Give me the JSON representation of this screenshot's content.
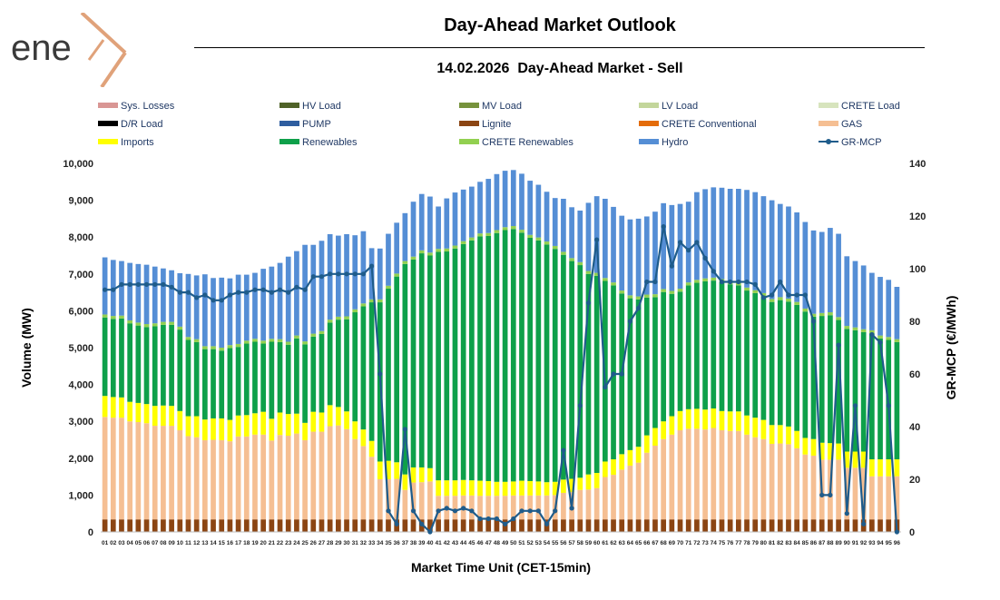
{
  "brand": {
    "logo_text": "ene",
    "logo_x_color": "#e0a27a",
    "logo_text_color": "#3a3a3a"
  },
  "title": "Day-Ahead Market Outlook",
  "subtitle": "14.02.2026  Day-Ahead Market - Sell",
  "chart_data": {
    "type": "bar",
    "stacked": true,
    "xlabel": "Market Time Unit (CET-15min)",
    "ylabel": "Volume (MW)",
    "ylabel_right": "GR-MCP (€/MWh)",
    "ylim": [
      0,
      10000
    ],
    "ylim_right": [
      0,
      140
    ],
    "yticks": [
      "0",
      "1,000",
      "2,000",
      "3,000",
      "4,000",
      "5,000",
      "6,000",
      "7,000",
      "8,000",
      "9,000",
      "10,000"
    ],
    "yticks_right": [
      "0",
      "20",
      "40",
      "60",
      "80",
      "100",
      "120",
      "140"
    ],
    "categories": [
      "01",
      "02",
      "03",
      "04",
      "05",
      "06",
      "07",
      "08",
      "09",
      "10",
      "11",
      "12",
      "13",
      "14",
      "15",
      "16",
      "17",
      "18",
      "19",
      "20",
      "21",
      "22",
      "23",
      "24",
      "25",
      "26",
      "27",
      "28",
      "29",
      "30",
      "31",
      "32",
      "33",
      "34",
      "35",
      "36",
      "37",
      "38",
      "39",
      "40",
      "41",
      "42",
      "43",
      "44",
      "45",
      "46",
      "47",
      "48",
      "49",
      "50",
      "51",
      "52",
      "53",
      "54",
      "55",
      "56",
      "57",
      "58",
      "59",
      "60",
      "61",
      "62",
      "63",
      "64",
      "65",
      "66",
      "67",
      "68",
      "69",
      "70",
      "71",
      "72",
      "73",
      "74",
      "75",
      "76",
      "77",
      "78",
      "79",
      "80",
      "81",
      "82",
      "83",
      "84",
      "85",
      "86",
      "87",
      "88",
      "89",
      "90",
      "91",
      "92",
      "93",
      "94",
      "95",
      "96"
    ],
    "legend": [
      {
        "name": "Sys. Losses",
        "color": "#d99694",
        "kind": "bar"
      },
      {
        "name": "HV Load",
        "color": "#4f6228",
        "kind": "bar"
      },
      {
        "name": "MV Load",
        "color": "#76923c",
        "kind": "bar"
      },
      {
        "name": "LV Load",
        "color": "#c3d69b",
        "kind": "bar"
      },
      {
        "name": "CRETE Load",
        "color": "#d7e4bd",
        "kind": "bar"
      },
      {
        "name": "D/R Load",
        "color": "#000000",
        "kind": "bar"
      },
      {
        "name": "PUMP",
        "color": "#2e5d9f",
        "kind": "bar"
      },
      {
        "name": "Lignite",
        "color": "#8b4513",
        "kind": "bar"
      },
      {
        "name": "CRETE Conventional",
        "color": "#e46c0a",
        "kind": "bar"
      },
      {
        "name": "GAS",
        "color": "#f5bf93",
        "kind": "bar"
      },
      {
        "name": "Imports",
        "color": "#ffff00",
        "kind": "bar"
      },
      {
        "name": "Renewables",
        "color": "#0ea04a",
        "kind": "bar"
      },
      {
        "name": "CRETE Renewables",
        "color": "#92d050",
        "kind": "bar"
      },
      {
        "name": "Hydro",
        "color": "#558ed5",
        "kind": "bar"
      },
      {
        "name": "GR-MCP",
        "color": "#1f5c8b",
        "kind": "line"
      }
    ],
    "series": [
      {
        "name": "Lignite",
        "color": "#8b4513",
        "values": [
          340,
          340,
          340,
          340,
          340,
          340,
          340,
          340,
          340,
          340,
          340,
          340,
          340,
          340,
          340,
          340,
          340,
          340,
          340,
          340,
          340,
          340,
          340,
          340,
          340,
          340,
          340,
          340,
          340,
          340,
          340,
          340,
          340,
          340,
          340,
          340,
          340,
          340,
          340,
          340,
          340,
          340,
          340,
          340,
          340,
          340,
          340,
          340,
          340,
          340,
          340,
          340,
          340,
          340,
          340,
          340,
          340,
          340,
          340,
          340,
          340,
          340,
          340,
          340,
          340,
          340,
          340,
          340,
          340,
          340,
          340,
          340,
          340,
          340,
          340,
          340,
          340,
          340,
          340,
          340,
          340,
          340,
          340,
          340,
          340,
          340,
          340,
          340,
          340,
          340,
          340,
          340,
          340,
          340,
          340,
          340
        ]
      },
      {
        "name": "GAS",
        "color": "#f5bf93",
        "values": [
          2780,
          2760,
          2760,
          2660,
          2640,
          2610,
          2540,
          2540,
          2540,
          2420,
          2260,
          2230,
          2150,
          2160,
          2150,
          2120,
          2250,
          2250,
          2300,
          2300,
          2140,
          2290,
          2270,
          2330,
          2150,
          2380,
          2380,
          2530,
          2550,
          2450,
          2180,
          1990,
          1700,
          1090,
          1090,
          1100,
          800,
          1000,
          1010,
          1030,
          640,
          640,
          640,
          650,
          650,
          640,
          640,
          640,
          640,
          650,
          650,
          650,
          650,
          650,
          660,
          720,
          740,
          800,
          810,
          850,
          1150,
          1210,
          1350,
          1460,
          1540,
          1810,
          2000,
          2180,
          2300,
          2420,
          2460,
          2460,
          2440,
          2480,
          2420,
          2400,
          2400,
          2300,
          2230,
          2180,
          2050,
          2060,
          2040,
          1930,
          1760,
          1730,
          1620,
          1620,
          1620,
          1400,
          1400,
          1400,
          1170,
          1170,
          1170,
          1170
        ]
      },
      {
        "name": "Imports",
        "color": "#ffff00",
        "values": [
          570,
          560,
          550,
          530,
          520,
          520,
          540,
          550,
          540,
          520,
          540,
          570,
          560,
          580,
          590,
          580,
          570,
          580,
          580,
          620,
          590,
          610,
          590,
          540,
          470,
          540,
          520,
          570,
          500,
          480,
          480,
          450,
          430,
          480,
          500,
          450,
          420,
          410,
          400,
          360,
          420,
          420,
          420,
          420,
          410,
          410,
          400,
          380,
          380,
          380,
          400,
          390,
          380,
          360,
          360,
          360,
          360,
          330,
          410,
          410,
          420,
          420,
          420,
          420,
          430,
          470,
          480,
          480,
          500,
          520,
          530,
          540,
          540,
          530,
          520,
          530,
          530,
          520,
          530,
          520,
          510,
          500,
          480,
          470,
          450,
          450,
          460,
          450,
          440,
          440,
          440,
          440,
          460,
          460,
          460,
          460
        ]
      },
      {
        "name": "Renewables",
        "color": "#0ea04a",
        "values": [
          2130,
          2120,
          2140,
          2130,
          2100,
          2090,
          2160,
          2190,
          2200,
          2210,
          2070,
          2010,
          1910,
          1880,
          1840,
          1950,
          1860,
          1940,
          1940,
          1850,
          2090,
          1910,
          1880,
          2040,
          2130,
          2040,
          2130,
          2240,
          2370,
          2500,
          2960,
          3340,
          3760,
          4320,
          4670,
          5040,
          5710,
          5640,
          5810,
          5770,
          6200,
          6210,
          6290,
          6400,
          6510,
          6630,
          6650,
          6750,
          6830,
          6850,
          6730,
          6600,
          6540,
          6450,
          6320,
          6100,
          5910,
          5770,
          5440,
          5350,
          4900,
          4720,
          4360,
          4120,
          4000,
          3740,
          3550,
          3510,
          3320,
          3240,
          3360,
          3420,
          3480,
          3470,
          3500,
          3450,
          3420,
          3390,
          3380,
          3360,
          3340,
          3390,
          3390,
          3420,
          3430,
          3320,
          3440,
          3470,
          3350,
          3330,
          3290,
          3240,
          3420,
          3280,
          3240,
          3180
        ]
      },
      {
        "name": "CRETE Renewables",
        "color": "#92d050",
        "values": [
          80,
          80,
          80,
          80,
          80,
          80,
          80,
          80,
          80,
          80,
          80,
          80,
          80,
          80,
          80,
          80,
          80,
          80,
          80,
          80,
          80,
          80,
          80,
          80,
          80,
          80,
          80,
          80,
          80,
          80,
          80,
          80,
          80,
          80,
          80,
          80,
          80,
          80,
          80,
          80,
          80,
          80,
          80,
          80,
          80,
          80,
          80,
          80,
          80,
          80,
          80,
          80,
          80,
          80,
          80,
          80,
          80,
          80,
          80,
          80,
          80,
          80,
          80,
          80,
          80,
          80,
          80,
          80,
          80,
          80,
          80,
          80,
          80,
          80,
          80,
          80,
          80,
          80,
          80,
          80,
          80,
          80,
          80,
          80,
          80,
          80,
          80,
          80,
          80,
          80,
          80,
          80,
          80,
          80,
          80,
          80
        ]
      },
      {
        "name": "Hydro",
        "color": "#558ed5",
        "values": [
          1550,
          1520,
          1480,
          1560,
          1590,
          1610,
          1540,
          1450,
          1400,
          1450,
          1710,
          1730,
          1950,
          1850,
          1900,
          1810,
          1880,
          1790,
          1790,
          1950,
          1960,
          2070,
          2310,
          2290,
          2620,
          2410,
          2450,
          2320,
          2200,
          2230,
          2010,
          1960,
          1390,
          1380,
          1410,
          1380,
          1300,
          1490,
          1530,
          1520,
          1150,
          1360,
          1440,
          1400,
          1380,
          1400,
          1470,
          1520,
          1530,
          1520,
          1520,
          1470,
          1430,
          1350,
          1300,
          1440,
          1380,
          1400,
          1850,
          2080,
          2150,
          2050,
          2030,
          2060,
          2110,
          2120,
          2240,
          2330,
          2330,
          2300,
          2190,
          2380,
          2420,
          2450,
          2480,
          2510,
          2540,
          2650,
          2660,
          2630,
          2680,
          2530,
          2500,
          2430,
          2350,
          2260,
          2200,
          2290,
          2260,
          1890,
          1800,
          1730,
          1560,
          1590,
          1550,
          1420
        ]
      }
    ],
    "line_series": {
      "name": "GR-MCP",
      "color": "#1f5c8b",
      "axis": "right",
      "values": [
        92,
        92,
        94,
        94,
        94,
        94,
        94,
        94,
        93,
        91,
        91,
        89,
        90,
        88,
        88,
        90,
        91,
        91,
        92,
        92,
        91,
        92,
        91,
        93,
        92,
        97,
        97,
        98,
        98,
        98,
        98,
        98,
        101,
        60,
        8,
        3,
        39,
        8,
        3,
        0,
        8,
        9,
        8,
        9,
        8,
        5,
        5,
        5,
        3,
        5,
        8,
        8,
        8,
        3,
        8,
        31,
        9,
        48,
        87,
        111,
        55,
        60,
        60,
        80,
        85,
        95,
        95,
        116,
        101,
        110,
        107,
        110,
        104,
        99,
        95,
        95,
        95,
        95,
        94,
        89,
        90,
        95,
        90,
        90,
        90,
        80,
        14,
        14,
        71,
        7,
        48,
        3,
        75,
        72,
        48,
        0
      ]
    }
  }
}
